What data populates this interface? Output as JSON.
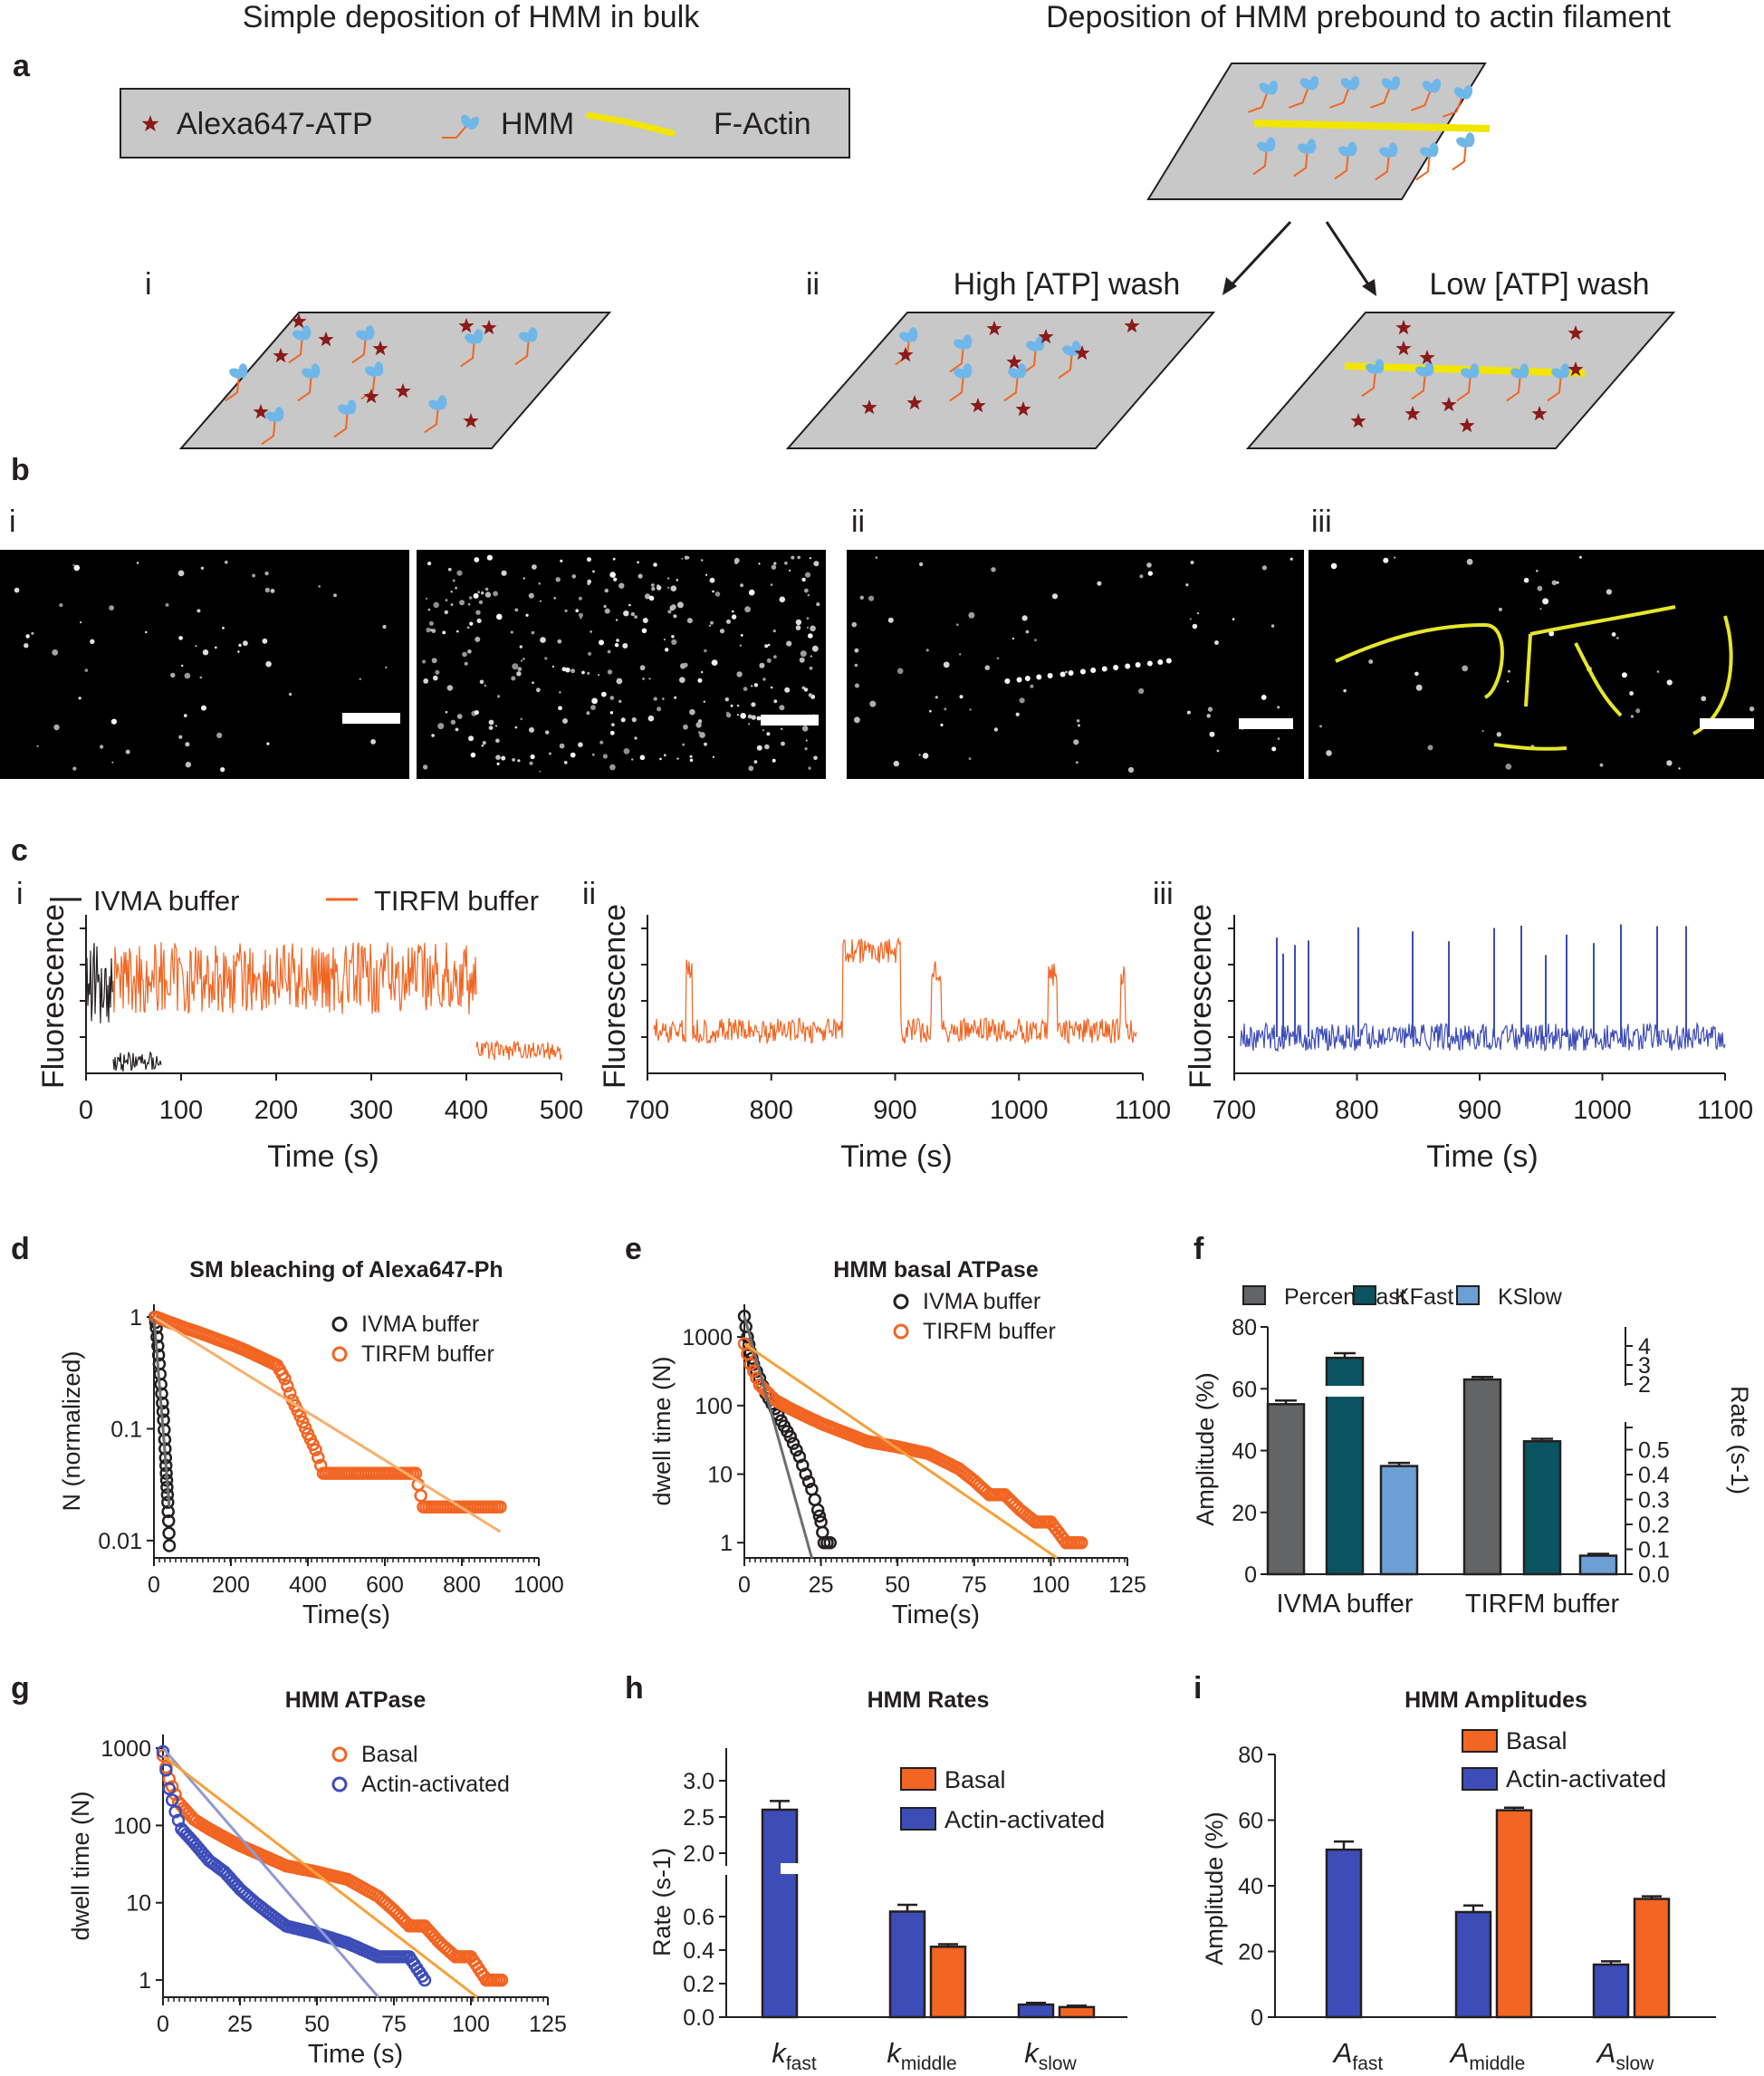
{
  "panel_a": {
    "letter": "a",
    "left_title": "Simple deposition of HMM in bulk",
    "right_title": "Deposition of HMM prebound to actin filament",
    "legend": {
      "atp": "Alexa647-ATP",
      "hmm": "HMM",
      "actin": "F-Actin"
    },
    "sub_i": "i",
    "sub_ii": "ii",
    "high_wash": "High [ATP] wash",
    "low_wash": "Low [ATP] wash",
    "colors": {
      "star": "#8b1a1a",
      "hmm_line": "#f26522",
      "hmm_head": "#6fb7e9",
      "actin": "#f2e600",
      "plate": "#c8c8c8"
    }
  },
  "panel_b": {
    "letter": "b",
    "sub_i": "i",
    "sub_ii": "ii",
    "sub_iii": "iii"
  },
  "panel_c": {
    "letter": "c",
    "sub_i": "i",
    "sub_ii": "ii",
    "sub_iii": "iii",
    "legend_ivma": "IVMA buffer",
    "legend_tirfm": "TIRFM buffer",
    "ylabel": "Fluorescence",
    "xlabel": "Time (s)",
    "ticks_i": [
      "0",
      "100",
      "200",
      "300",
      "400",
      "500"
    ],
    "ticks_ii": [
      "700",
      "800",
      "900",
      "1000",
      "1100"
    ],
    "ticks_iii": [
      "700",
      "800",
      "900",
      "1000",
      "1100"
    ],
    "colors": {
      "ivma": "#231f20",
      "tirfm": "#f26522",
      "blue": "#3d4db8"
    }
  },
  "chart_data": [
    {
      "id": "d",
      "type": "scatter",
      "title": "SM bleaching of Alexa647-Ph",
      "xlabel": "Time(s)",
      "ylabel": "N (normalized)",
      "xticks": [
        "0",
        "200",
        "400",
        "600",
        "800",
        "1000"
      ],
      "yticks": [
        "1",
        "0.1",
        "0.01"
      ],
      "xlim": [
        0,
        1000
      ],
      "ylim_log": [
        0.007,
        1.3
      ],
      "yscale": "log",
      "series": [
        {
          "name": "IVMA buffer",
          "color": "#231f20",
          "x": [
            3,
            6,
            10,
            14,
            18,
            22,
            25,
            28,
            30,
            32,
            34,
            36,
            38,
            40
          ],
          "y": [
            1,
            0.8,
            0.55,
            0.38,
            0.25,
            0.17,
            0.12,
            0.08,
            0.055,
            0.04,
            0.03,
            0.022,
            0.015,
            0.009
          ]
        },
        {
          "name": "TIRFM buffer",
          "color": "#f26522",
          "x": [
            5,
            40,
            80,
            120,
            160,
            200,
            240,
            280,
            320,
            340,
            360,
            380,
            400,
            420,
            440,
            500,
            600,
            680,
            700,
            800,
            900
          ],
          "y": [
            1,
            0.9,
            0.8,
            0.72,
            0.64,
            0.57,
            0.5,
            0.43,
            0.37,
            0.28,
            0.18,
            0.13,
            0.09,
            0.065,
            0.04,
            0.04,
            0.04,
            0.04,
            0.02,
            0.02,
            0.02
          ]
        }
      ],
      "fits": [
        {
          "color": "#6d6e71",
          "x": [
            0,
            40
          ],
          "y": [
            1,
            0.02
          ]
        },
        {
          "color": "#f7b06e",
          "x": [
            0,
            900
          ],
          "y": [
            1,
            0.012
          ]
        }
      ]
    },
    {
      "id": "e",
      "type": "scatter",
      "title": "HMM basal ATPase",
      "xlabel": "Time(s)",
      "ylabel": "dwell time (N)",
      "xticks": [
        "0",
        "25",
        "50",
        "75",
        "100",
        "125"
      ],
      "yticks": [
        "1000",
        "100",
        "10",
        "1"
      ],
      "xlim": [
        0,
        125
      ],
      "ylim_log": [
        0.6,
        3000
      ],
      "yscale": "log",
      "series": [
        {
          "name": "IVMA buffer",
          "color": "#231f20",
          "x": [
            0,
            1,
            2,
            3,
            5,
            7,
            10,
            12,
            15,
            18,
            20,
            22,
            24,
            25,
            26,
            28
          ],
          "y": [
            2000,
            1000,
            600,
            400,
            250,
            150,
            90,
            60,
            35,
            18,
            10,
            6,
            3,
            2,
            1,
            1
          ]
        },
        {
          "name": "TIRFM buffer",
          "color": "#f26522",
          "x": [
            0,
            2,
            5,
            10,
            15,
            20,
            25,
            30,
            40,
            50,
            60,
            70,
            75,
            80,
            85,
            90,
            95,
            100,
            105,
            110
          ],
          "y": [
            800,
            400,
            200,
            120,
            90,
            70,
            55,
            45,
            30,
            25,
            20,
            12,
            8,
            5,
            5,
            3,
            2,
            2,
            1,
            1
          ]
        }
      ],
      "fits": [
        {
          "color": "#6d6e71",
          "x": [
            0,
            22
          ],
          "y": [
            2000,
            0.6
          ]
        },
        {
          "color": "#f7a13a",
          "x": [
            0,
            102
          ],
          "y": [
            800,
            0.6
          ]
        }
      ]
    },
    {
      "id": "f",
      "type": "bar",
      "legend": [
        "PercentFast",
        "KFast",
        "KSlow"
      ],
      "colors": [
        "#636466",
        "#0a5461",
        "#6c9fd4"
      ],
      "categories": [
        "IVMA buffer",
        "TIRFM buffer"
      ],
      "ylabel_left": "Amplitude (%)",
      "ylabel_right": "Rate (s-1)",
      "yticks_left": [
        "0",
        "20",
        "40",
        "60",
        "80"
      ],
      "yticks_right_low": [
        "0.0",
        "0.1",
        "0.2",
        "0.3",
        "0.4",
        "0.5"
      ],
      "yticks_right_high": [
        "2",
        "3",
        "4"
      ],
      "ylim_left": [
        0,
        80
      ],
      "series": [
        {
          "name": "PercentFast",
          "values": [
            55,
            63
          ],
          "errors": [
            1.2,
            0.8
          ]
        },
        {
          "name": "KFast",
          "values_pct": [
            70,
            43
          ],
          "errors": [
            1.5,
            0.8
          ]
        },
        {
          "name": "KSlow",
          "values_pct": [
            35,
            6
          ],
          "errors": [
            1,
            0.6
          ]
        }
      ]
    },
    {
      "id": "g",
      "type": "scatter",
      "title": "HMM ATPase",
      "xlabel": "Time (s)",
      "ylabel": "dwell time (N)",
      "xticks": [
        "0",
        "25",
        "50",
        "75",
        "100",
        "125"
      ],
      "yticks": [
        "1000",
        "100",
        "10",
        "1"
      ],
      "xlim": [
        0,
        125
      ],
      "ylim_log": [
        0.6,
        1500
      ],
      "yscale": "log",
      "series": [
        {
          "name": "Basal",
          "color": "#f26522",
          "x": [
            0,
            2,
            5,
            10,
            15,
            20,
            25,
            30,
            40,
            50,
            60,
            70,
            75,
            80,
            85,
            90,
            95,
            100,
            105,
            110
          ],
          "y": [
            800,
            400,
            200,
            120,
            90,
            70,
            55,
            45,
            30,
            25,
            20,
            12,
            8,
            5,
            5,
            3,
            2,
            2,
            1,
            1
          ]
        },
        {
          "name": "Actin-activated",
          "color": "#3d4db8",
          "x": [
            0,
            2,
            4,
            6,
            10,
            15,
            20,
            25,
            30,
            35,
            40,
            50,
            60,
            70,
            80,
            85
          ],
          "y": [
            900,
            300,
            150,
            90,
            60,
            35,
            25,
            15,
            10,
            7,
            5,
            4,
            3,
            2,
            2,
            1
          ]
        }
      ],
      "fits": [
        {
          "color": "#8f9ad4",
          "x": [
            0,
            70
          ],
          "y": [
            1000,
            0.6
          ]
        },
        {
          "color": "#f7a13a",
          "x": [
            0,
            102
          ],
          "y": [
            800,
            0.6
          ]
        }
      ]
    },
    {
      "id": "h",
      "type": "bar",
      "title": "HMM Rates",
      "ylabel": "Rate (s-1)",
      "legend": [
        "Basal",
        "Actin-activated"
      ],
      "colors": [
        "#f26522",
        "#3d4db8"
      ],
      "categories": [
        "k_fast",
        "k_middle",
        "k_slow"
      ],
      "yticks_low": [
        "0.0",
        "0.2",
        "0.4",
        "0.6"
      ],
      "yticks_high": [
        "2.0",
        "2.5",
        "3.0"
      ],
      "series": [
        {
          "name": "Actin-activated",
          "values": [
            2.6,
            0.63,
            0.075
          ],
          "errors": [
            0.12,
            0.04,
            0.01
          ]
        },
        {
          "name": "Basal",
          "values": [
            0,
            0.42,
            0.06
          ],
          "errors": [
            0,
            0.015,
            0.008
          ]
        }
      ]
    },
    {
      "id": "i",
      "type": "bar",
      "title": "HMM Amplitudes",
      "ylabel": "Amplitude (%)",
      "legend": [
        "Basal",
        "Actin-activated"
      ],
      "colors": [
        "#f26522",
        "#3d4db8"
      ],
      "categories": [
        "A_fast",
        "A_middle",
        "A_slow"
      ],
      "yticks": [
        "0",
        "20",
        "40",
        "60",
        "80"
      ],
      "ylim": [
        0,
        80
      ],
      "series": [
        {
          "name": "Actin-activated",
          "values": [
            51,
            32,
            16
          ],
          "errors": [
            2.5,
            2,
            1
          ]
        },
        {
          "name": "Basal",
          "values": [
            0,
            63,
            36
          ],
          "errors": [
            0,
            0.8,
            0.8
          ]
        }
      ]
    }
  ],
  "subscripts": {
    "h_cat": [
      [
        "k",
        "fast"
      ],
      [
        "k",
        "middle"
      ],
      [
        "k",
        "slow"
      ]
    ],
    "i_cat": [
      [
        "A",
        "fast"
      ],
      [
        "A",
        "middle"
      ],
      [
        "A",
        "slow"
      ]
    ]
  },
  "letters": {
    "d": "d",
    "e": "e",
    "f": "f",
    "g": "g",
    "h": "h",
    "i": "i"
  }
}
